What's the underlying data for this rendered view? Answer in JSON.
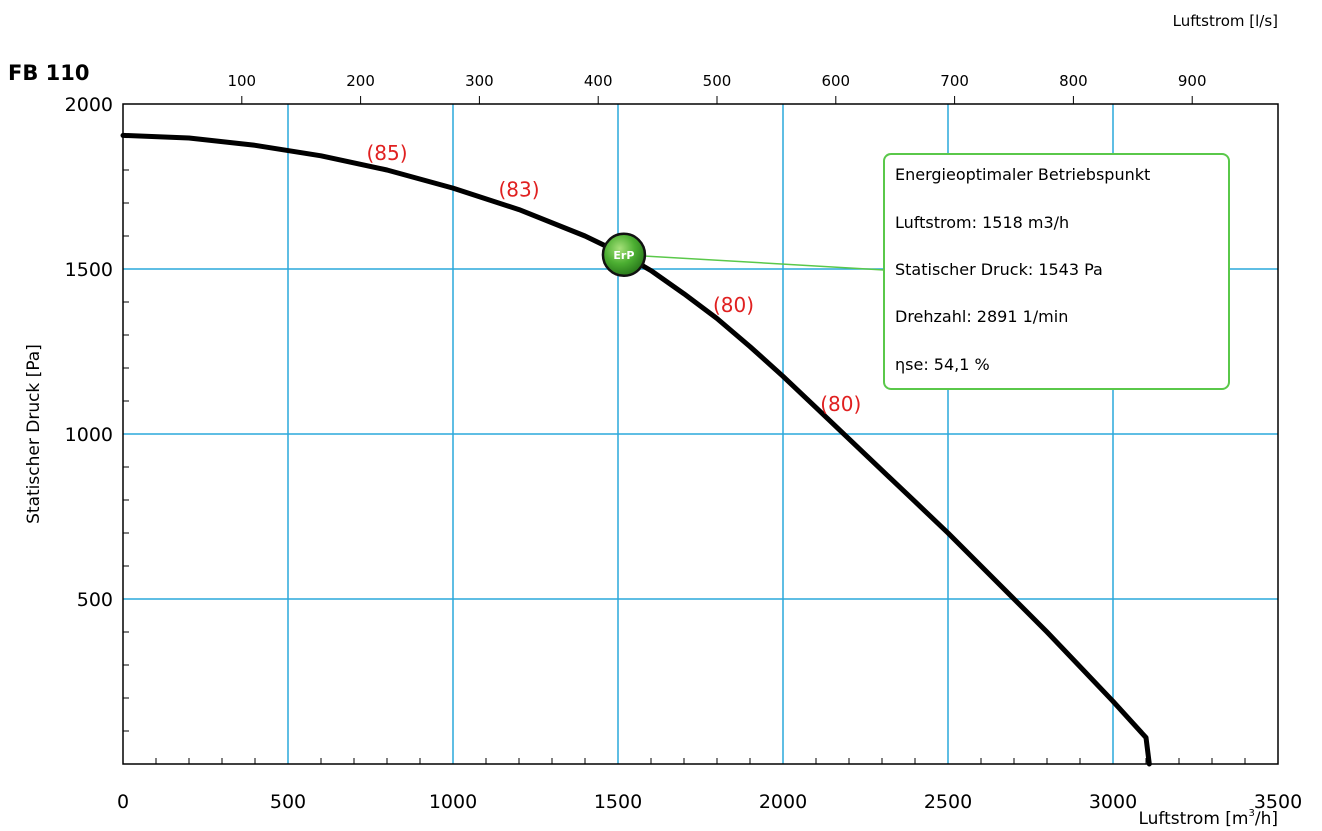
{
  "chart_data": {
    "type": "line",
    "title": "FB 110",
    "xlabel": "Luftstrom [m",
    "xlabel_sup": "3",
    "xlabel_end": "/h]",
    "ylabel": "Statischer Druck [Pa]",
    "x2label": "Luftstrom [l/s]",
    "xlim": [
      0,
      3500
    ],
    "ylim": [
      0,
      2000
    ],
    "x2lim": [
      0,
      972.22
    ],
    "xticks": [
      0,
      500,
      1000,
      1500,
      2000,
      2500,
      3000,
      3500
    ],
    "yticks": [
      500,
      1000,
      1500,
      2000
    ],
    "x2ticks": [
      100,
      200,
      300,
      400,
      500,
      600,
      700,
      800,
      900
    ],
    "grid": true,
    "series": [
      {
        "x": [
          0,
          200,
          400,
          600,
          800,
          1000,
          1200,
          1400,
          1518,
          1600,
          1700,
          1800,
          1900,
          2000,
          2100,
          2200,
          2300,
          2400,
          2500,
          2600,
          2700,
          2800,
          2900,
          3000,
          3100,
          3110
        ],
        "y": [
          1905,
          1897,
          1875,
          1843,
          1800,
          1745,
          1680,
          1600,
          1543,
          1495,
          1425,
          1350,
          1265,
          1175,
          1080,
          985,
          890,
          795,
          700,
          600,
          500,
          400,
          295,
          190,
          80,
          0
        ]
      }
    ],
    "efficiency_labels": [
      {
        "x": 800,
        "y": 1830,
        "text": "(85)"
      },
      {
        "x": 1200,
        "y": 1720,
        "text": "(83)"
      },
      {
        "x": 1850,
        "y": 1370,
        "text": "(80)"
      },
      {
        "x": 2175,
        "y": 1070,
        "text": "(80)"
      }
    ],
    "operating_point": {
      "x": 1518,
      "y": 1543,
      "marker_label": "ErP",
      "box_title": "Energieoptimaler Betriebspunkt",
      "lines": [
        "Luftstrom: 1518 m3/h",
        "Statischer Druck: 1543 Pa",
        "Drehzahl: 2891 1/min",
        "ηse: 54,1 %"
      ]
    },
    "colors": {
      "grid": "#2aa8dc",
      "curve": "#000000",
      "efficiency": "#e02020",
      "box_border": "#5ac84a",
      "marker": "#4caf32"
    }
  }
}
